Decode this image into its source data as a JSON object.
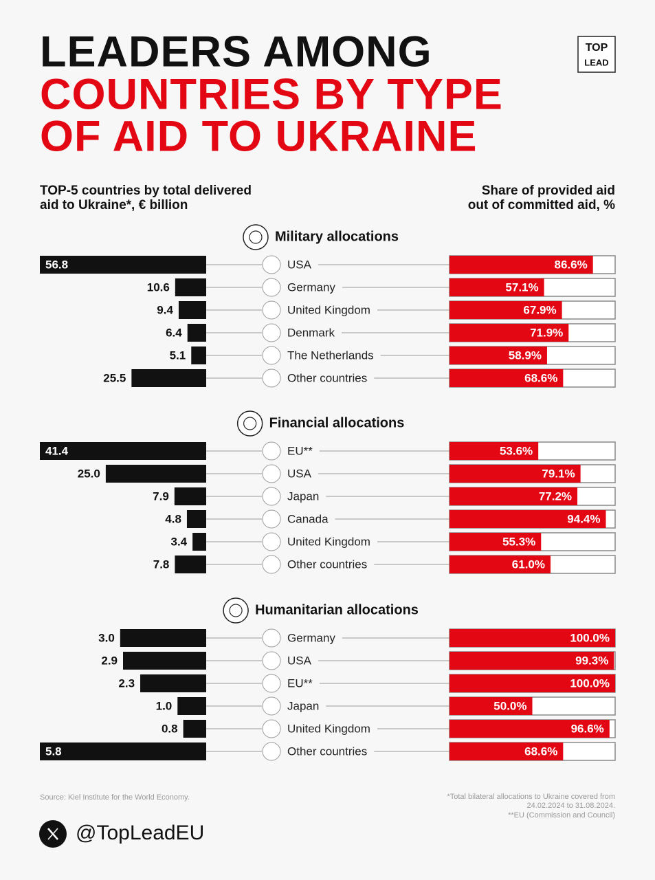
{
  "header": {
    "title_line1": "LEADERS AMONG",
    "title_line2": "COUNTRIES BY TYPE",
    "title_line3": "OF AID TO UKRAINE",
    "logo_top": "TOP",
    "logo_bottom": "LEAD",
    "left_caption_1": "TOP-5 countries by total delivered",
    "left_caption_2": "aid to Ukraine*, € billion",
    "right_caption_1": "Share of provided aid",
    "right_caption_2": "out of committed aid, %"
  },
  "chart_data": [
    {
      "type": "bar",
      "title": "Military allocations",
      "categories": [
        "USA",
        "Germany",
        "United Kingdom",
        "Denmark",
        "The Netherlands",
        "Other countries"
      ],
      "values": [
        56.8,
        10.6,
        9.4,
        6.4,
        5.1,
        25.5
      ],
      "value_labels": [
        "56.8",
        "10.6",
        "9.4",
        "6.4",
        "5.1",
        "25.5"
      ],
      "color": "#111111",
      "shares": [
        86.6,
        57.1,
        67.9,
        71.9,
        58.9,
        68.6
      ],
      "share_labels": [
        "86.6%",
        "57.1%",
        "67.9%",
        "71.9%",
        "58.9%",
        "68.6%"
      ],
      "share_color": "#e30613"
    },
    {
      "type": "bar",
      "title": "Financial allocations",
      "categories": [
        "EU**",
        "USA",
        "Japan",
        "Canada",
        "United Kingdom",
        "Other countries"
      ],
      "values": [
        41.4,
        25.0,
        7.9,
        4.8,
        3.4,
        7.8
      ],
      "value_labels": [
        "41.4",
        "25.0",
        "7.9",
        "4.8",
        "3.4",
        "7.8"
      ],
      "color": "#111111",
      "shares": [
        53.6,
        79.1,
        77.2,
        94.4,
        55.3,
        61.0
      ],
      "share_labels": [
        "53.6%",
        "79.1%",
        "77.2%",
        "94.4%",
        "55.3%",
        "61.0%"
      ],
      "share_color": "#e30613"
    },
    {
      "type": "bar",
      "title": "Humanitarian allocations",
      "categories": [
        "Germany",
        "USA",
        "EU**",
        "Japan",
        "United Kingdom",
        "Other countries"
      ],
      "values": [
        3.0,
        2.9,
        2.3,
        1.0,
        0.8,
        5.8
      ],
      "value_labels": [
        "3.0",
        "2.9",
        "2.3",
        "1.0",
        "0.8",
        "5.8"
      ],
      "color": "#111111",
      "shares": [
        100.0,
        99.3,
        100.0,
        50.0,
        96.6,
        68.6
      ],
      "share_labels": [
        "100.0%",
        "99.3%",
        "100.0%",
        "50.0%",
        "96.6%",
        "68.6%"
      ],
      "share_color": "#e30613"
    }
  ],
  "footer": {
    "source": "Source: Kiel Institute for the World Economy.",
    "note_1": "*Total bilateral allocations to Ukraine covered from",
    "note_2": "24.02.2024 to 31.08.2024.",
    "note_3": "**EU (Commission and Council)",
    "handle": "@TopLeadEU"
  }
}
